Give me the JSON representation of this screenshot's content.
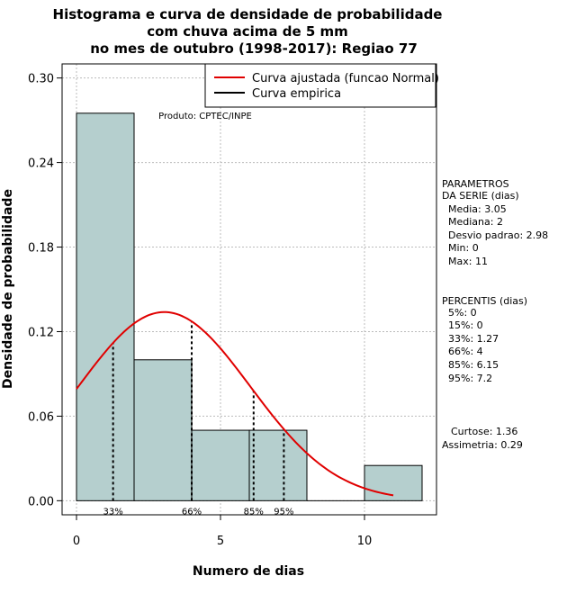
{
  "chart_data": {
    "type": "bar",
    "title_lines": [
      "Histograma e curva de densidade de probabilidade",
      "com chuva acima de 5 mm",
      "no mes de outubro (1998-2017): Regiao 77"
    ],
    "xlabel": "Numero de dias",
    "ylabel": "Densidade de probabilidade",
    "xlim": [
      -0.5,
      12.5
    ],
    "ylim": [
      -0.01,
      0.31
    ],
    "xticks": [
      0,
      5,
      10
    ],
    "yticks": [
      0.0,
      0.06,
      0.12,
      0.18,
      0.24,
      0.3
    ],
    "ytick_labels": [
      "0.00",
      "0.06",
      "0.12",
      "0.18",
      "0.24",
      "0.30"
    ],
    "grid": true,
    "bars": [
      {
        "x0": 0,
        "x1": 2,
        "value": 0.275
      },
      {
        "x0": 2,
        "x1": 4,
        "value": 0.1
      },
      {
        "x0": 4,
        "x1": 6,
        "value": 0.05
      },
      {
        "x0": 6,
        "x1": 8,
        "value": 0.05
      },
      {
        "x0": 8,
        "x1": 10,
        "value": 0.0
      },
      {
        "x0": 10,
        "x1": 12,
        "value": 0.025
      }
    ],
    "bar_color": "#b5cfce",
    "normal_curve": {
      "mean": 3.05,
      "sd": 2.98,
      "x_from": 0,
      "x_to": 11,
      "color": "#e00000"
    },
    "percentile_lines": [
      {
        "label": "33%",
        "x": 1.27
      },
      {
        "label": "66%",
        "x": 4
      },
      {
        "label": "85%",
        "x": 6.15
      },
      {
        "label": "95%",
        "x": 7.2
      }
    ],
    "legend": {
      "position": "top-right",
      "entries": [
        {
          "label": "Curva ajustada (funcao Normal)",
          "color": "#e00000"
        },
        {
          "label": "Curva empirica",
          "color": "#000000"
        }
      ]
    },
    "annotation": "Produto: CPTEC/INPE"
  },
  "sidebar": {
    "params_header": [
      "PARAMETROS",
      "DA SERIE (dias)"
    ],
    "params": [
      "Media: 3.05",
      "Mediana: 2",
      "Desvio padrao: 2.98",
      "Min: 0",
      "Max: 11"
    ],
    "percentis_header": "PERCENTIS (dias)",
    "percentis": [
      "5%: 0",
      "15%: 0",
      "33%: 1.27",
      "66%: 4",
      "85%: 6.15",
      "95%: 7.2"
    ],
    "stats": [
      "Curtose: 1.36",
      "Assimetria: 0.29"
    ]
  }
}
